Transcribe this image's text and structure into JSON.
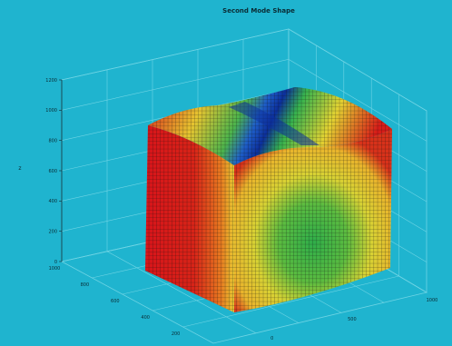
{
  "chart_data": {
    "type": "surface3d",
    "title": "Second Mode Shape",
    "zlabel": "z",
    "xlabel": "",
    "ylabel": "",
    "z_ticks": [
      "0",
      "200",
      "400",
      "600",
      "800",
      "1000",
      "1200"
    ],
    "left_axis_ticks": [
      "0",
      "200",
      "400",
      "600",
      "800",
      "1000"
    ],
    "right_axis_ticks": [
      "0",
      "500",
      "1000"
    ],
    "zlim": [
      0,
      1200
    ],
    "grid": true,
    "colormap": "jet",
    "description_values": {
      "box_height": 950,
      "max_deflection_color": "#0a2f9e",
      "edge_color": "#c8141a",
      "mid_color": "#e6d930",
      "center_color": "#32b24a"
    }
  },
  "colors": {
    "background": "#1fb4cf",
    "grid": "#6fd4e4",
    "axis": "#0a2a33"
  }
}
